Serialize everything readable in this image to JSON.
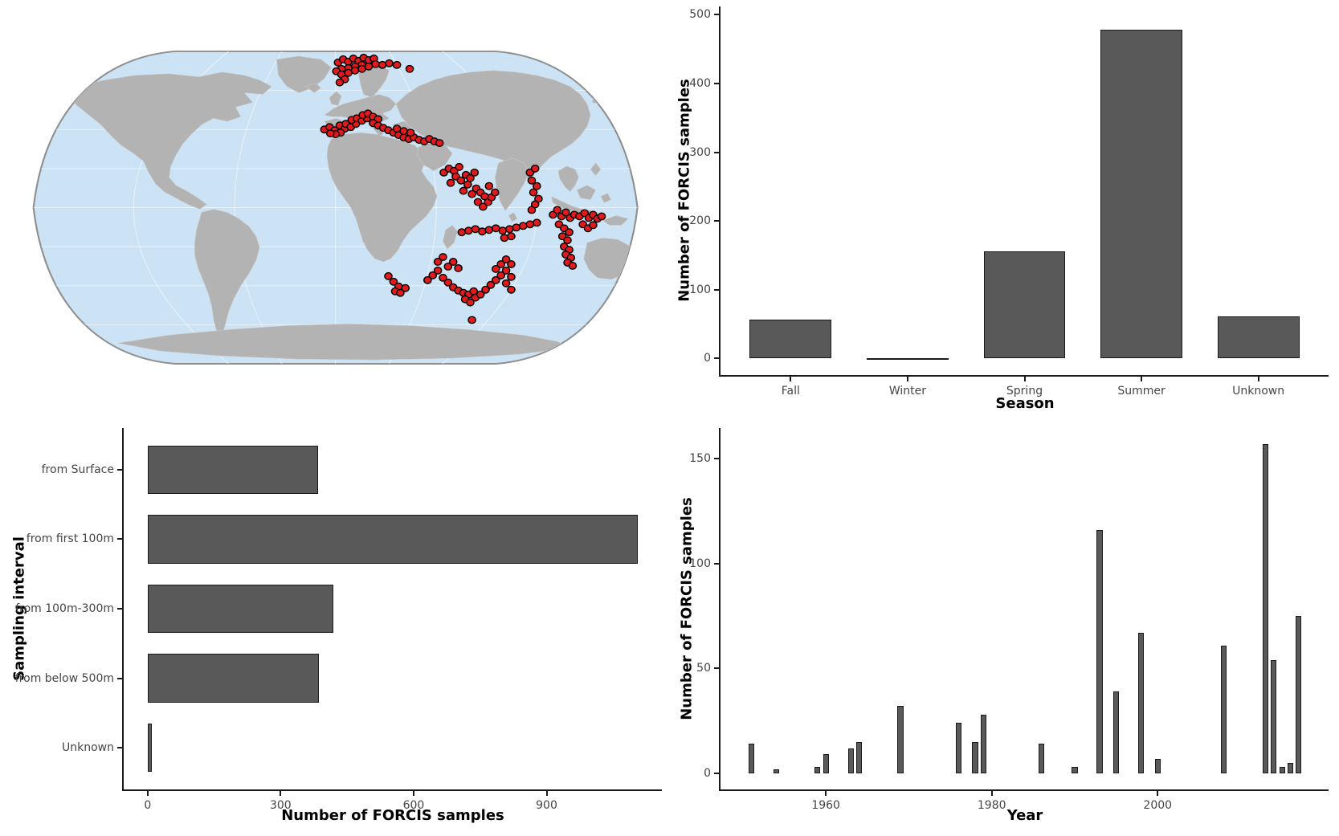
{
  "figure": {
    "description": "Four-panel FORCIS sample summary figure: world map of sample locations, samples per season, samples per sampling interval, samples per year",
    "background": "#ffffff"
  },
  "colors": {
    "bar_fill": "#595959",
    "bar_stroke": "#1a1a1a",
    "tick_text": "#454545",
    "axis_line": "#1a1a1a",
    "ocean": "#cbe3f5",
    "land": "#b3b3b3",
    "map_outline": "#8f8f8f",
    "point_fill": "#e31a1c",
    "point_stroke": "#000000"
  },
  "chart_data": [
    {
      "id": "season",
      "type": "bar",
      "categories": [
        "Fall",
        "Winter",
        "Spring",
        "Summer",
        "Unknown"
      ],
      "values": [
        57,
        1,
        156,
        478,
        61
      ],
      "xlabel": "Season",
      "ylabel": "Number of FORCIS samples",
      "yticks": [
        0,
        100,
        200,
        300,
        400,
        500
      ],
      "ylim": [
        -24,
        512
      ],
      "grid": false,
      "legend": "none",
      "bar_rel_width": 0.7
    },
    {
      "id": "sampling_interval",
      "type": "bar-horizontal",
      "categories": [
        "from Surface",
        "from first 100m",
        "from 100m-300m",
        "from below 500m",
        "Unknown"
      ],
      "values": [
        385,
        1106,
        419,
        387,
        10
      ],
      "xlabel": "Number of FORCIS samples",
      "ylabel": "Sampling interval",
      "xticks": [
        0,
        300,
        600,
        900
      ],
      "xlim": [
        -54,
        1160
      ],
      "grid": false,
      "legend": "none",
      "bar_rel_width": 0.7
    },
    {
      "id": "year",
      "type": "bar",
      "x": [
        1951,
        1954,
        1959,
        1960,
        1963,
        1964,
        1969,
        1976,
        1978,
        1979,
        1986,
        1990,
        1993,
        1995,
        1998,
        2000,
        2008,
        2013,
        2014,
        2015,
        2016,
        2017
      ],
      "values": [
        14,
        2,
        3,
        9,
        12,
        15,
        32,
        24,
        15,
        28,
        14,
        3,
        116,
        39,
        67,
        7,
        61,
        157,
        54,
        3,
        5,
        75
      ],
      "xlabel": "Year",
      "ylabel": "Number of FORCIS samples",
      "xticks": [
        1960,
        1980,
        2000
      ],
      "yticks": [
        0,
        50,
        100,
        150
      ],
      "xlim": [
        1947.3,
        2020.6
      ],
      "ylim": [
        -7.7,
        164.6
      ],
      "grid": false,
      "legend": "none",
      "bar_width_x": 0.7
    },
    {
      "id": "map",
      "type": "scatter",
      "title": "",
      "note": "FORCIS sample locations shown as red dots on a Robinson-style world map; coordinates are map-local (viewBox 725x405)",
      "point_radius": 4.3,
      "points": [
        [
          368,
          22
        ],
        [
          374,
          18
        ],
        [
          380,
          21
        ],
        [
          386,
          17
        ],
        [
          392,
          20
        ],
        [
          398,
          16
        ],
        [
          404,
          19
        ],
        [
          410,
          17
        ],
        [
          396,
          25
        ],
        [
          388,
          27
        ],
        [
          380,
          29
        ],
        [
          372,
          30
        ],
        [
          366,
          33
        ],
        [
          372,
          37
        ],
        [
          380,
          35
        ],
        [
          388,
          32
        ],
        [
          396,
          30
        ],
        [
          404,
          27
        ],
        [
          412,
          24
        ],
        [
          420,
          25
        ],
        [
          428,
          23
        ],
        [
          437,
          25
        ],
        [
          452,
          30
        ],
        [
          376,
          43
        ],
        [
          370,
          47
        ],
        [
          352,
          106
        ],
        [
          358,
          103
        ],
        [
          364,
          107
        ],
        [
          370,
          101
        ],
        [
          376,
          105
        ],
        [
          371,
          110
        ],
        [
          365,
          112
        ],
        [
          359,
          111
        ],
        [
          377,
          99
        ],
        [
          383,
          103
        ],
        [
          389,
          99
        ],
        [
          384,
          94
        ],
        [
          390,
          92
        ],
        [
          396,
          95
        ],
        [
          402,
          92
        ],
        [
          397,
          88
        ],
        [
          403,
          86
        ],
        [
          409,
          90
        ],
        [
          415,
          93
        ],
        [
          409,
          98
        ],
        [
          415,
          101
        ],
        [
          421,
          104
        ],
        [
          427,
          107
        ],
        [
          433,
          110
        ],
        [
          439,
          113
        ],
        [
          445,
          116
        ],
        [
          451,
          118
        ],
        [
          457,
          116
        ],
        [
          463,
          119
        ],
        [
          469,
          121
        ],
        [
          475,
          118
        ],
        [
          481,
          121
        ],
        [
          487,
          123
        ],
        [
          453,
          110
        ],
        [
          445,
          108
        ],
        [
          437,
          105
        ],
        [
          492,
          160
        ],
        [
          498,
          155
        ],
        [
          504,
          158
        ],
        [
          510,
          153
        ],
        [
          506,
          165
        ],
        [
          512,
          170
        ],
        [
          518,
          163
        ],
        [
          523,
          167
        ],
        [
          528,
          160
        ],
        [
          520,
          175
        ],
        [
          515,
          183
        ],
        [
          525,
          187
        ],
        [
          530,
          180
        ],
        [
          535,
          185
        ],
        [
          540,
          190
        ],
        [
          532,
          197
        ],
        [
          538,
          203
        ],
        [
          544,
          197
        ],
        [
          548,
          191
        ],
        [
          552,
          185
        ],
        [
          545,
          177
        ],
        [
          500,
          173
        ],
        [
          593,
          160
        ],
        [
          599,
          155
        ],
        [
          595,
          170
        ],
        [
          601,
          177
        ],
        [
          597,
          185
        ],
        [
          603,
          193
        ],
        [
          599,
          200
        ],
        [
          595,
          207
        ],
        [
          620,
          213
        ],
        [
          625,
          207
        ],
        [
          630,
          215
        ],
        [
          635,
          210
        ],
        [
          640,
          217
        ],
        [
          645,
          213
        ],
        [
          651,
          215
        ],
        [
          657,
          211
        ],
        [
          662,
          217
        ],
        [
          667,
          213
        ],
        [
          672,
          218
        ],
        [
          677,
          215
        ],
        [
          627,
          225
        ],
        [
          633,
          230
        ],
        [
          639,
          235
        ],
        [
          631,
          240
        ],
        [
          637,
          245
        ],
        [
          633,
          253
        ],
        [
          639,
          257
        ],
        [
          635,
          263
        ],
        [
          641,
          267
        ],
        [
          637,
          273
        ],
        [
          643,
          277
        ],
        [
          655,
          225
        ],
        [
          661,
          230
        ],
        [
          667,
          226
        ],
        [
          513,
          235
        ],
        [
          521,
          233
        ],
        [
          529,
          231
        ],
        [
          537,
          234
        ],
        [
          545,
          232
        ],
        [
          553,
          230
        ],
        [
          561,
          233
        ],
        [
          569,
          231
        ],
        [
          577,
          229
        ],
        [
          585,
          227
        ],
        [
          593,
          225
        ],
        [
          601,
          223
        ],
        [
          571,
          240
        ],
        [
          563,
          242
        ],
        [
          427,
          290
        ],
        [
          433,
          297
        ],
        [
          439,
          303
        ],
        [
          435,
          309
        ],
        [
          441,
          311
        ],
        [
          447,
          305
        ],
        [
          485,
          272
        ],
        [
          491,
          266
        ],
        [
          497,
          278
        ],
        [
          503,
          272
        ],
        [
          509,
          280
        ],
        [
          485,
          283
        ],
        [
          479,
          289
        ],
        [
          473,
          295
        ],
        [
          491,
          292
        ],
        [
          497,
          298
        ],
        [
          503,
          304
        ],
        [
          509,
          308
        ],
        [
          515,
          311
        ],
        [
          521,
          313
        ],
        [
          527,
          309
        ],
        [
          517,
          319
        ],
        [
          523,
          323
        ],
        [
          529,
          317
        ],
        [
          535,
          313
        ],
        [
          541,
          307
        ],
        [
          547,
          301
        ],
        [
          553,
          295
        ],
        [
          559,
          289
        ],
        [
          553,
          281
        ],
        [
          559,
          275
        ],
        [
          565,
          269
        ],
        [
          571,
          275
        ],
        [
          565,
          283
        ],
        [
          571,
          291
        ],
        [
          565,
          299
        ],
        [
          571,
          307
        ],
        [
          525,
          345
        ]
      ]
    }
  ]
}
